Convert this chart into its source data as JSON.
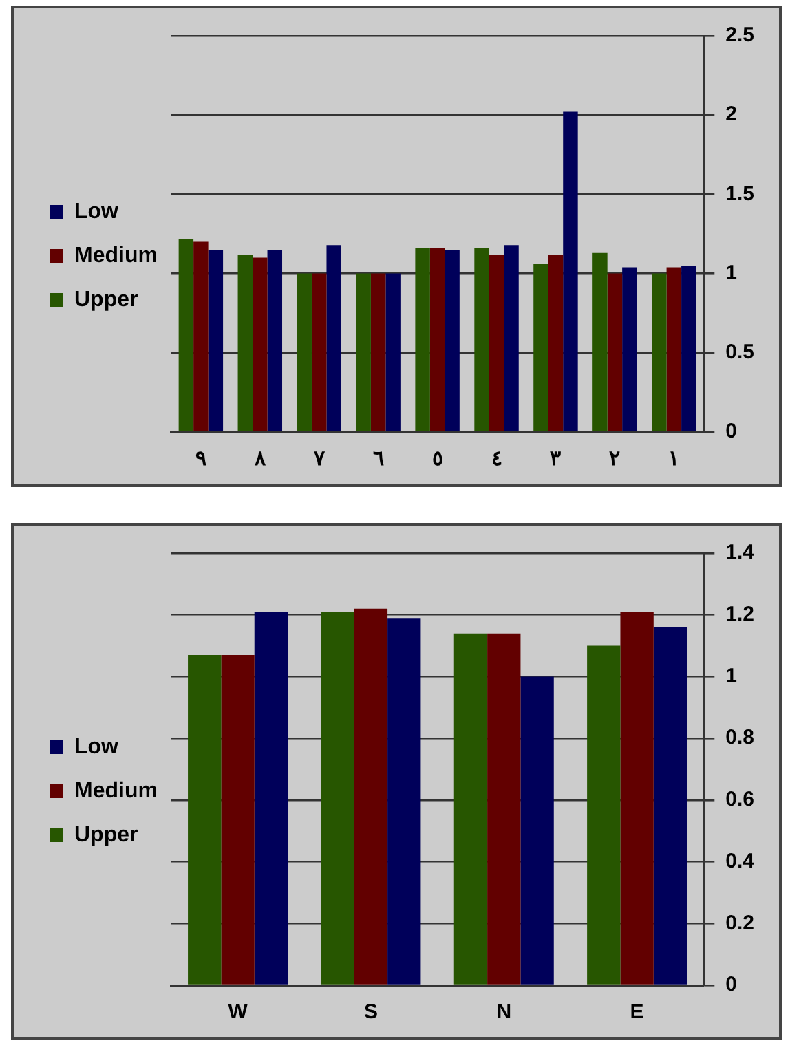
{
  "chart_data": [
    {
      "type": "bar",
      "categories": [
        "٩",
        "٨",
        "٧",
        "٦",
        "٥",
        "٤",
        "٣",
        "٢",
        "١"
      ],
      "series": [
        {
          "name": "Upper",
          "color": "#275600",
          "values": [
            1.22,
            1.12,
            1.0,
            1.0,
            1.16,
            1.16,
            1.06,
            1.13,
            1.0
          ]
        },
        {
          "name": "Medium",
          "color": "#620000",
          "values": [
            1.2,
            1.1,
            1.0,
            1.0,
            1.16,
            1.12,
            1.12,
            1.0,
            1.04
          ]
        },
        {
          "name": "Low",
          "color": "#00005a",
          "values": [
            1.15,
            1.15,
            1.18,
            1.0,
            1.15,
            1.18,
            2.02,
            1.04,
            1.05
          ]
        }
      ],
      "ylim": [
        0,
        2.5
      ],
      "yticks": [
        0,
        0.5,
        1,
        1.5,
        2,
        2.5
      ],
      "grid": "y",
      "legend": "left"
    },
    {
      "type": "bar",
      "categories": [
        "W",
        "S",
        "N",
        "E"
      ],
      "series": [
        {
          "name": "Upper",
          "color": "#275600",
          "values": [
            1.07,
            1.21,
            1.14,
            1.1
          ]
        },
        {
          "name": "Medium",
          "color": "#620000",
          "values": [
            1.07,
            1.22,
            1.14,
            1.21
          ]
        },
        {
          "name": "Low",
          "color": "#00005a",
          "values": [
            1.21,
            1.19,
            1.0,
            1.16
          ]
        }
      ],
      "ylim": [
        0,
        1.4
      ],
      "yticks": [
        0,
        0.2,
        0.4,
        0.6,
        0.8,
        1,
        1.2,
        1.4
      ],
      "grid": "y",
      "legend": "left"
    }
  ]
}
